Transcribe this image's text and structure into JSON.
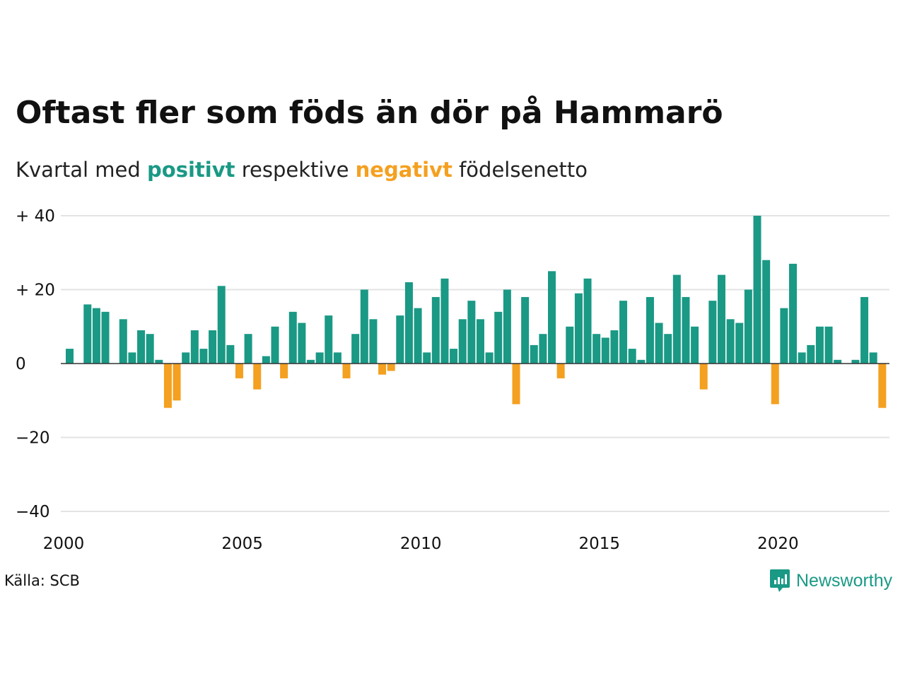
{
  "title": "Oftast fler som föds än dör på Hammarö",
  "subtitle": {
    "prefix": "Kvartal med ",
    "positive": "positivt",
    "middle": " respektive ",
    "negative": "negativt",
    "suffix": " födelsenetto"
  },
  "source": "Källa: SCB",
  "brand": {
    "name": "Newsworthy",
    "icon": "newsworthy-logo-icon"
  },
  "colors": {
    "positive": "#1a9985",
    "negative": "#f4a020",
    "grid": "#e3e3e3",
    "zero_line": "#333333"
  },
  "chart_data": {
    "type": "bar",
    "x_start": "2000 Q1",
    "frequency": "quarterly",
    "y_tick_labels": [
      "+ 40",
      "+ 20",
      "0",
      "−20",
      "−40"
    ],
    "y_ticks": [
      40,
      20,
      0,
      -20,
      -40
    ],
    "x_tick_labels": [
      "2000",
      "2005",
      "2010",
      "2015",
      "2020"
    ],
    "ylim": [
      -40,
      40
    ],
    "grid": true,
    "values": [
      4,
      0,
      16,
      15,
      14,
      0,
      12,
      3,
      9,
      8,
      1,
      -12,
      -10,
      3,
      9,
      4,
      9,
      21,
      5,
      -4,
      8,
      -7,
      2,
      10,
      -4,
      14,
      11,
      1,
      3,
      13,
      3,
      -4,
      8,
      20,
      12,
      -3,
      -2,
      13,
      22,
      15,
      3,
      18,
      23,
      4,
      12,
      17,
      12,
      3,
      14,
      20,
      -11,
      18,
      5,
      8,
      25,
      -4,
      10,
      19,
      23,
      8,
      7,
      9,
      17,
      4,
      1,
      18,
      11,
      8,
      24,
      18,
      10,
      -7,
      17,
      24,
      12,
      11,
      20,
      40,
      28,
      -11,
      15,
      27,
      3,
      5,
      10,
      10,
      1,
      0,
      1,
      18,
      3,
      -12
    ]
  }
}
